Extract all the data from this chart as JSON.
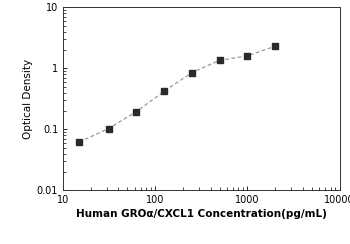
{
  "x_data": [
    15,
    31.25,
    62.5,
    125,
    250,
    500,
    1000,
    2000
  ],
  "y_data": [
    0.062,
    0.103,
    0.195,
    0.42,
    0.85,
    1.35,
    1.6,
    2.3
  ],
  "xlabel": "Human GROα/CXCL1 Concentration(pg/mL)",
  "ylabel": "Optical Density",
  "xlim": [
    10,
    10000
  ],
  "ylim": [
    0.01,
    10
  ],
  "xticks": [
    10,
    100,
    1000,
    10000
  ],
  "yticks": [
    0.01,
    0.1,
    1,
    10
  ],
  "marker": "s",
  "marker_color": "#2a2a2a",
  "marker_size": 4.5,
  "line_color": "#999999",
  "line_style": "--",
  "line_width": 0.9,
  "xlabel_fontsize": 7.5,
  "ylabel_fontsize": 7.5,
  "tick_fontsize": 7,
  "background_color": "#ffffff"
}
